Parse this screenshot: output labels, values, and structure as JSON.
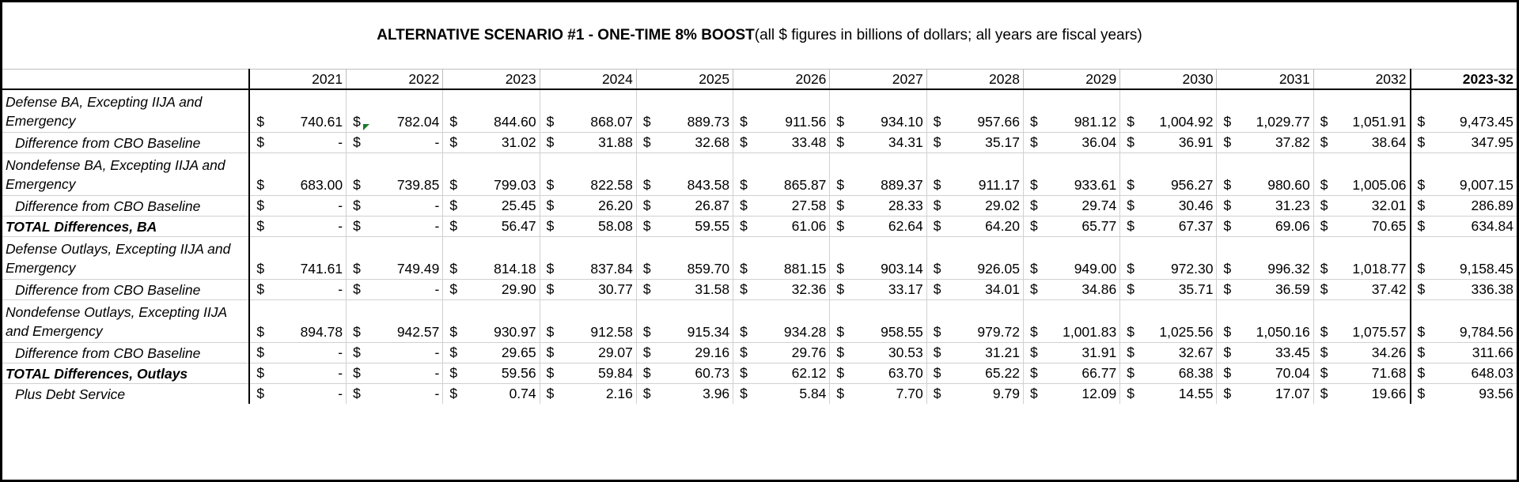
{
  "title_bold": "ALTERNATIVE SCENARIO #1 - ONE-TIME 8% BOOST",
  "title_note": " (all $ figures in billions of dollars; all years are fiscal years)",
  "currency": "$",
  "years": [
    "2021",
    "2022",
    "2023",
    "2024",
    "2025",
    "2026",
    "2027",
    "2028",
    "2029",
    "2030",
    "2031",
    "2032"
  ],
  "total_header": "2023-32",
  "rows": [
    {
      "label": "Defense BA, Excepting IIJA and Emergency",
      "style": "main",
      "values": [
        "740.61",
        "782.04",
        "844.60",
        "868.07",
        "889.73",
        "911.56",
        "934.10",
        "957.66",
        "981.12",
        "1,004.92",
        "1,029.77",
        "1,051.91"
      ],
      "total": "9,473.45"
    },
    {
      "label": "Difference from CBO Baseline",
      "style": "sub",
      "values": [
        "-",
        "-",
        "31.02",
        "31.88",
        "32.68",
        "33.48",
        "34.31",
        "35.17",
        "36.04",
        "36.91",
        "37.82",
        "38.64"
      ],
      "total": "347.95"
    },
    {
      "label": "Nondefense BA, Excepting IIJA and Emergency",
      "style": "main",
      "values": [
        "683.00",
        "739.85",
        "799.03",
        "822.58",
        "843.58",
        "865.87",
        "889.37",
        "911.17",
        "933.61",
        "956.27",
        "980.60",
        "1,005.06"
      ],
      "total": "9,007.15"
    },
    {
      "label": "Difference from CBO Baseline",
      "style": "sub",
      "values": [
        "-",
        "-",
        "25.45",
        "26.20",
        "26.87",
        "27.58",
        "28.33",
        "29.02",
        "29.74",
        "30.46",
        "31.23",
        "32.01"
      ],
      "total": "286.89"
    },
    {
      "label": "TOTAL Differences, BA",
      "style": "total",
      "values": [
        "-",
        "-",
        "56.47",
        "58.08",
        "59.55",
        "61.06",
        "62.64",
        "64.20",
        "65.77",
        "67.37",
        "69.06",
        "70.65"
      ],
      "total": "634.84"
    },
    {
      "label": "Defense Outlays, Excepting IIJA and Emergency",
      "style": "main",
      "values": [
        "741.61",
        "749.49",
        "814.18",
        "837.84",
        "859.70",
        "881.15",
        "903.14",
        "926.05",
        "949.00",
        "972.30",
        "996.32",
        "1,018.77"
      ],
      "total": "9,158.45"
    },
    {
      "label": "Difference from CBO Baseline",
      "style": "sub",
      "values": [
        "-",
        "-",
        "29.90",
        "30.77",
        "31.58",
        "32.36",
        "33.17",
        "34.01",
        "34.86",
        "35.71",
        "36.59",
        "37.42"
      ],
      "total": "336.38"
    },
    {
      "label": "Nondefense Outlays, Excepting IIJA and Emergency",
      "style": "main",
      "values": [
        "894.78",
        "942.57",
        "930.97",
        "912.58",
        "915.34",
        "934.28",
        "958.55",
        "979.72",
        "1,001.83",
        "1,025.56",
        "1,050.16",
        "1,075.57"
      ],
      "total": "9,784.56"
    },
    {
      "label": "Difference from CBO Baseline",
      "style": "sub",
      "values": [
        "-",
        "-",
        "29.65",
        "29.07",
        "29.16",
        "29.76",
        "30.53",
        "31.21",
        "31.91",
        "32.67",
        "33.45",
        "34.26"
      ],
      "total": "311.66"
    },
    {
      "label": "TOTAL Differences, Outlays",
      "style": "total",
      "values": [
        "-",
        "-",
        "59.56",
        "59.84",
        "60.73",
        "62.12",
        "63.70",
        "65.22",
        "66.77",
        "68.38",
        "70.04",
        "71.68"
      ],
      "total": "648.03"
    },
    {
      "label": "Plus Debt Service",
      "style": "sub",
      "values": [
        "-",
        "-",
        "0.74",
        "2.16",
        "3.96",
        "5.84",
        "7.70",
        "9.79",
        "12.09",
        "14.55",
        "17.07",
        "19.66"
      ],
      "total": "93.56"
    }
  ]
}
